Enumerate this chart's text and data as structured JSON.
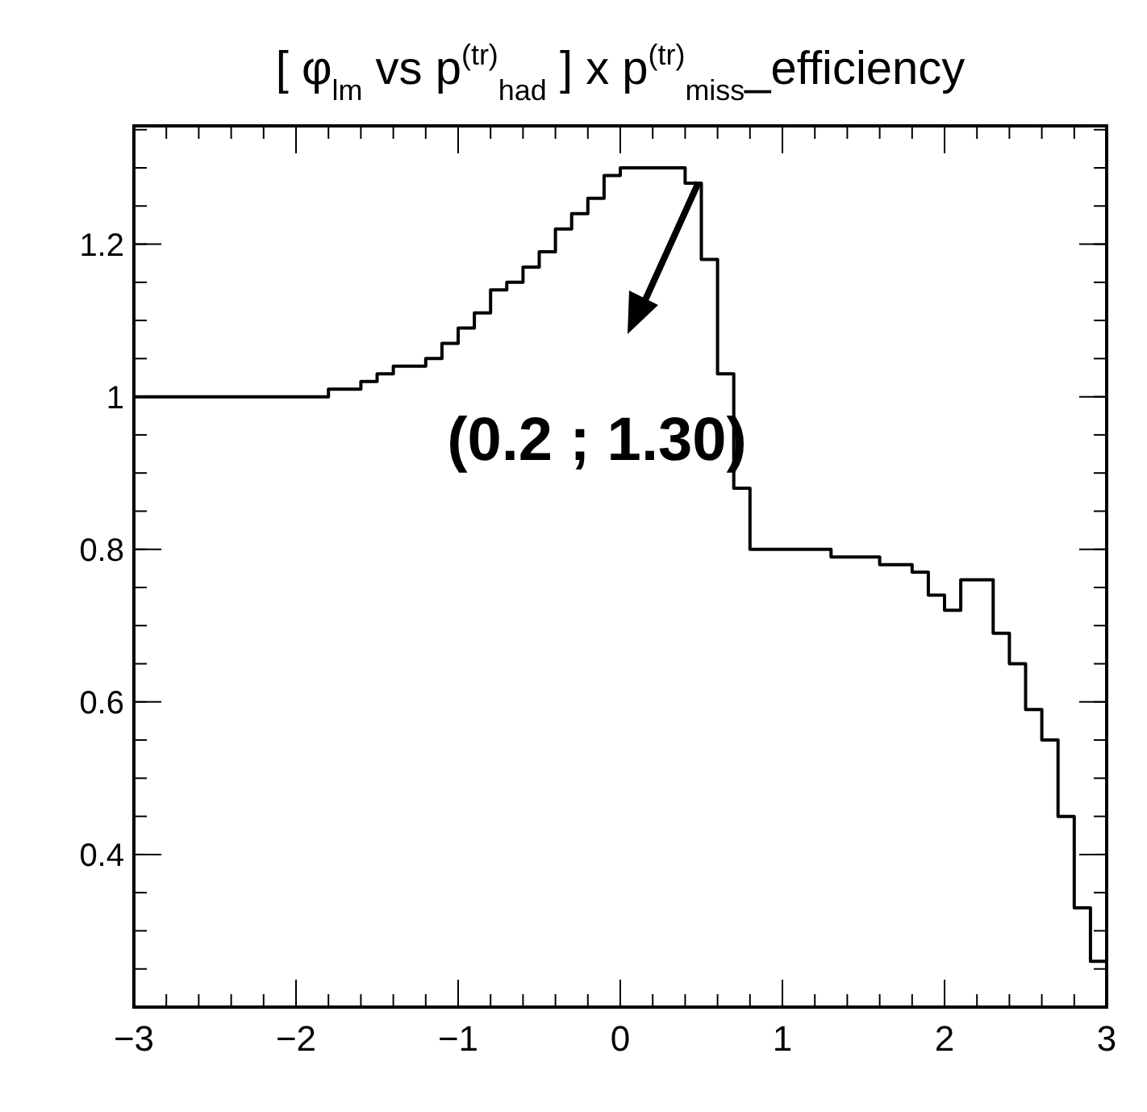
{
  "chart_data": {
    "type": "histogram",
    "title": "[ φ$_{lm}$ vs p$^{(tr)}$$_{had}$ ] x p$^{(tr)}$$_{miss}$_efficiency",
    "bins": [
      -3,
      -2.9,
      -2.8,
      -2.7,
      -2.6,
      -2.5,
      -2.4,
      -2.3,
      -2.2,
      -2.1,
      -2,
      -1.9,
      -1.8,
      -1.7,
      -1.6,
      -1.5,
      -1.4,
      -1.3,
      -1.2,
      -1.1,
      -1,
      -0.9,
      -0.8,
      -0.7,
      -0.6,
      -0.5,
      -0.4,
      -0.3,
      -0.2,
      -0.1,
      0,
      0.1,
      0.2,
      0.3,
      0.4,
      0.5,
      0.6,
      0.7,
      0.8,
      0.9,
      1,
      1.1,
      1.2,
      1.3,
      1.4,
      1.5,
      1.6,
      1.7,
      1.8,
      1.9,
      2,
      2.1,
      2.2,
      2.3,
      2.4,
      2.5,
      2.6,
      2.7,
      2.8,
      2.9,
      3
    ],
    "values": [
      1,
      1,
      1,
      1,
      1,
      1,
      1,
      1,
      1,
      1,
      1,
      1,
      1.01,
      1.01,
      1.02,
      1.03,
      1.04,
      1.04,
      1.05,
      1.07,
      1.09,
      1.11,
      1.14,
      1.15,
      1.17,
      1.19,
      1.22,
      1.24,
      1.26,
      1.29,
      1.3,
      1.3,
      1.3,
      1.3,
      1.28,
      1.18,
      1.03,
      0.88,
      0.8,
      0.8,
      0.8,
      0.8,
      0.8,
      0.79,
      0.79,
      0.79,
      0.78,
      0.78,
      0.77,
      0.74,
      0.72,
      0.76,
      0.76,
      0.69,
      0.65,
      0.59,
      0.55,
      0.45,
      0.33,
      0.26
    ],
    "color": "#000000",
    "xlim": [
      -3,
      3
    ],
    "xticks": [
      {
        "value": -3,
        "label": "−3"
      },
      {
        "value": -2,
        "label": "−2"
      },
      {
        "value": -1,
        "label": "−1"
      },
      0,
      1,
      2,
      3
    ],
    "ylim": [
      0.2,
      1.355
    ],
    "yticks": [
      0.4,
      0.6,
      0.8,
      1,
      1.2
    ],
    "annotations": [
      "(0.2 ; 1.30)"
    ],
    "grid": false
  }
}
